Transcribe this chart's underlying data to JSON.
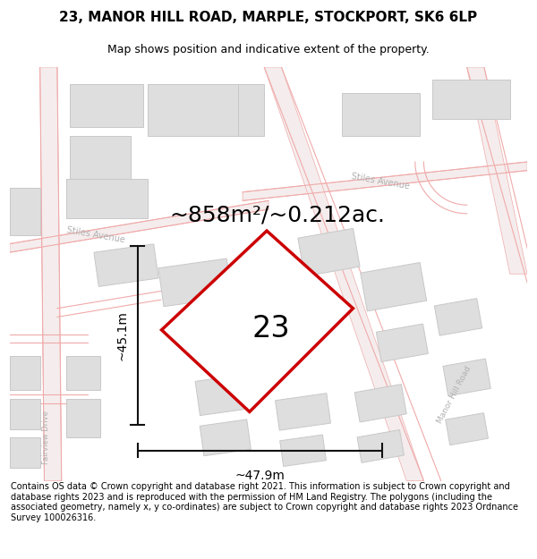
{
  "title_line1": "23, MANOR HILL ROAD, MARPLE, STOCKPORT, SK6 6LP",
  "title_line2": "Map shows position and indicative extent of the property.",
  "area_text": "~858m²/~0.212ac.",
  "number_label": "23",
  "dim_vertical": "~45.1m",
  "dim_horizontal": "~47.9m",
  "footer": "Contains OS data © Crown copyright and database right 2021. This information is subject to Crown copyright and database rights 2023 and is reproduced with the permission of HM Land Registry. The polygons (including the associated geometry, namely x, y co-ordinates) are subject to Crown copyright and database rights 2023 Ordnance Survey 100026316.",
  "map_bg": "#f2f0f0",
  "road_stroke": "#f0aaaa",
  "building_fill": "#dedede",
  "building_edge": "#c8c8c8",
  "red_plot_color": "#cc0000",
  "dim_color": "#111111",
  "road_label_color": "#b0b0b0",
  "title_fontsize": 11,
  "subtitle_fontsize": 9,
  "area_fontsize": 18,
  "number_fontsize": 24,
  "dim_fontsize": 10,
  "footer_fontsize": 7.0,
  "road_lw": 0.8
}
